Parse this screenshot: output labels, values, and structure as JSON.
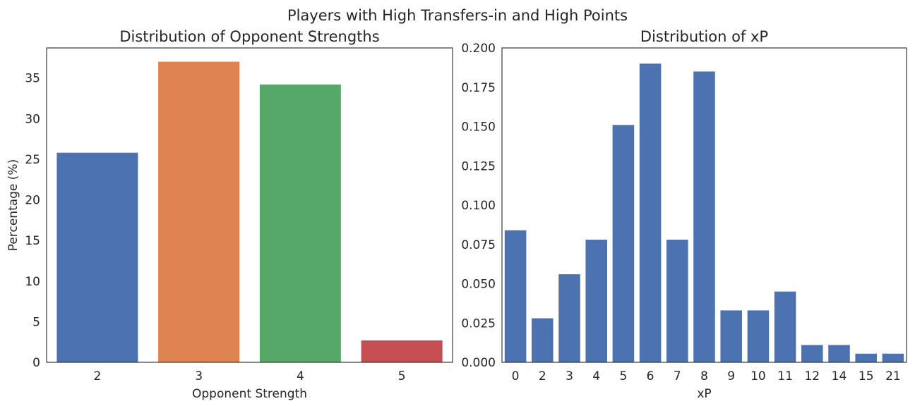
{
  "figure": {
    "suptitle": "Players with High Transfers-in and High Points"
  },
  "chart_data": [
    {
      "type": "bar",
      "title": "Distribution of Opponent Strengths",
      "xlabel": "Opponent Strength",
      "ylabel": "Percentage (%)",
      "categories": [
        "2",
        "3",
        "4",
        "5"
      ],
      "values": [
        25.8,
        37.0,
        34.2,
        2.7
      ],
      "colors": [
        "#4c72b0",
        "#dd8452",
        "#55a868",
        "#c44e52"
      ],
      "ylim": [
        0,
        38.7
      ],
      "yticks": [
        0,
        5,
        10,
        15,
        20,
        25,
        30,
        35
      ],
      "ytick_labels": [
        "0",
        "5",
        "10",
        "15",
        "20",
        "25",
        "30",
        "35"
      ],
      "grid": false,
      "legend": "none"
    },
    {
      "type": "bar",
      "title": "Distribution of xP",
      "xlabel": "xP",
      "ylabel": "",
      "categories": [
        "0",
        "2",
        "3",
        "4",
        "5",
        "6",
        "7",
        "8",
        "9",
        "10",
        "11",
        "12",
        "14",
        "15",
        "21"
      ],
      "values": [
        0.084,
        0.028,
        0.056,
        0.078,
        0.151,
        0.19,
        0.078,
        0.185,
        0.033,
        0.033,
        0.045,
        0.011,
        0.011,
        0.0055,
        0.0055
      ],
      "colors": [
        "#4c72b0"
      ],
      "ylim": [
        0,
        0.2
      ],
      "yticks": [
        0,
        0.025,
        0.05,
        0.075,
        0.1,
        0.125,
        0.15,
        0.175,
        0.2
      ],
      "ytick_labels": [
        "0.000",
        "0.025",
        "0.050",
        "0.075",
        "0.100",
        "0.125",
        "0.150",
        "0.175",
        "0.200"
      ],
      "grid": false,
      "legend": "none"
    }
  ]
}
